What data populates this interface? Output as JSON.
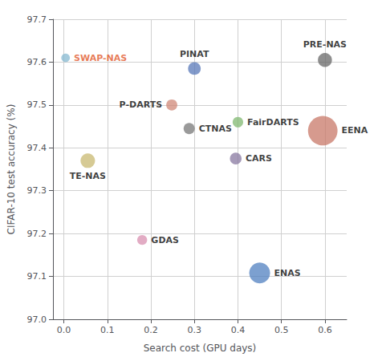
{
  "chart_data": {
    "type": "scatter",
    "x": [
      0.004,
      0.3,
      0.6,
      0.248,
      0.4,
      0.288,
      0.595,
      0.055,
      0.395,
      0.18,
      0.45
    ],
    "values": [
      97.61,
      97.585,
      97.605,
      97.5,
      97.46,
      97.445,
      97.44,
      97.37,
      97.375,
      97.185,
      97.108
    ],
    "sizes": [
      60,
      130,
      160,
      100,
      90,
      100,
      700,
      170,
      110,
      80,
      350
    ],
    "colors": [
      "#85b8d0",
      "#5878b8",
      "#686868",
      "#d08878",
      "#80b870",
      "#787878",
      "#c87868",
      "#c8b870",
      "#8878a0",
      "#d890b0",
      "#5080c0"
    ],
    "annotations": [
      "SWAP-NAS",
      "PINAT",
      "PRE-NAS",
      "P-DARTS",
      "FairDARTS",
      "CTNAS",
      "EENA",
      "TE-NAS",
      "CARS",
      "GDAS",
      "ENAS"
    ],
    "annotation_colors": [
      "#e05020",
      "#000000",
      "#000000",
      "#000000",
      "#000000",
      "#000000",
      "#000000",
      "#000000",
      "#000000",
      "#000000",
      "#000000"
    ],
    "xlabel": "Search cost (GPU days)",
    "ylabel": "CIFAR-10 test accuracy (%)",
    "xlim": [
      -0.025,
      0.65
    ],
    "ylim": [
      97.0,
      97.7
    ],
    "xticks": [
      {
        "value": 0,
        "label": "0.0"
      },
      0.1,
      0.2,
      0.3,
      0.4,
      0.5,
      0.6
    ],
    "yticks": [
      {
        "value": 97,
        "label": "97.0"
      },
      97.1,
      97.2,
      97.3,
      97.4,
      97.5,
      97.6,
      97.7
    ],
    "grid": true,
    "background_color": "#ffffff",
    "grid_color": "#d0d0d0"
  }
}
